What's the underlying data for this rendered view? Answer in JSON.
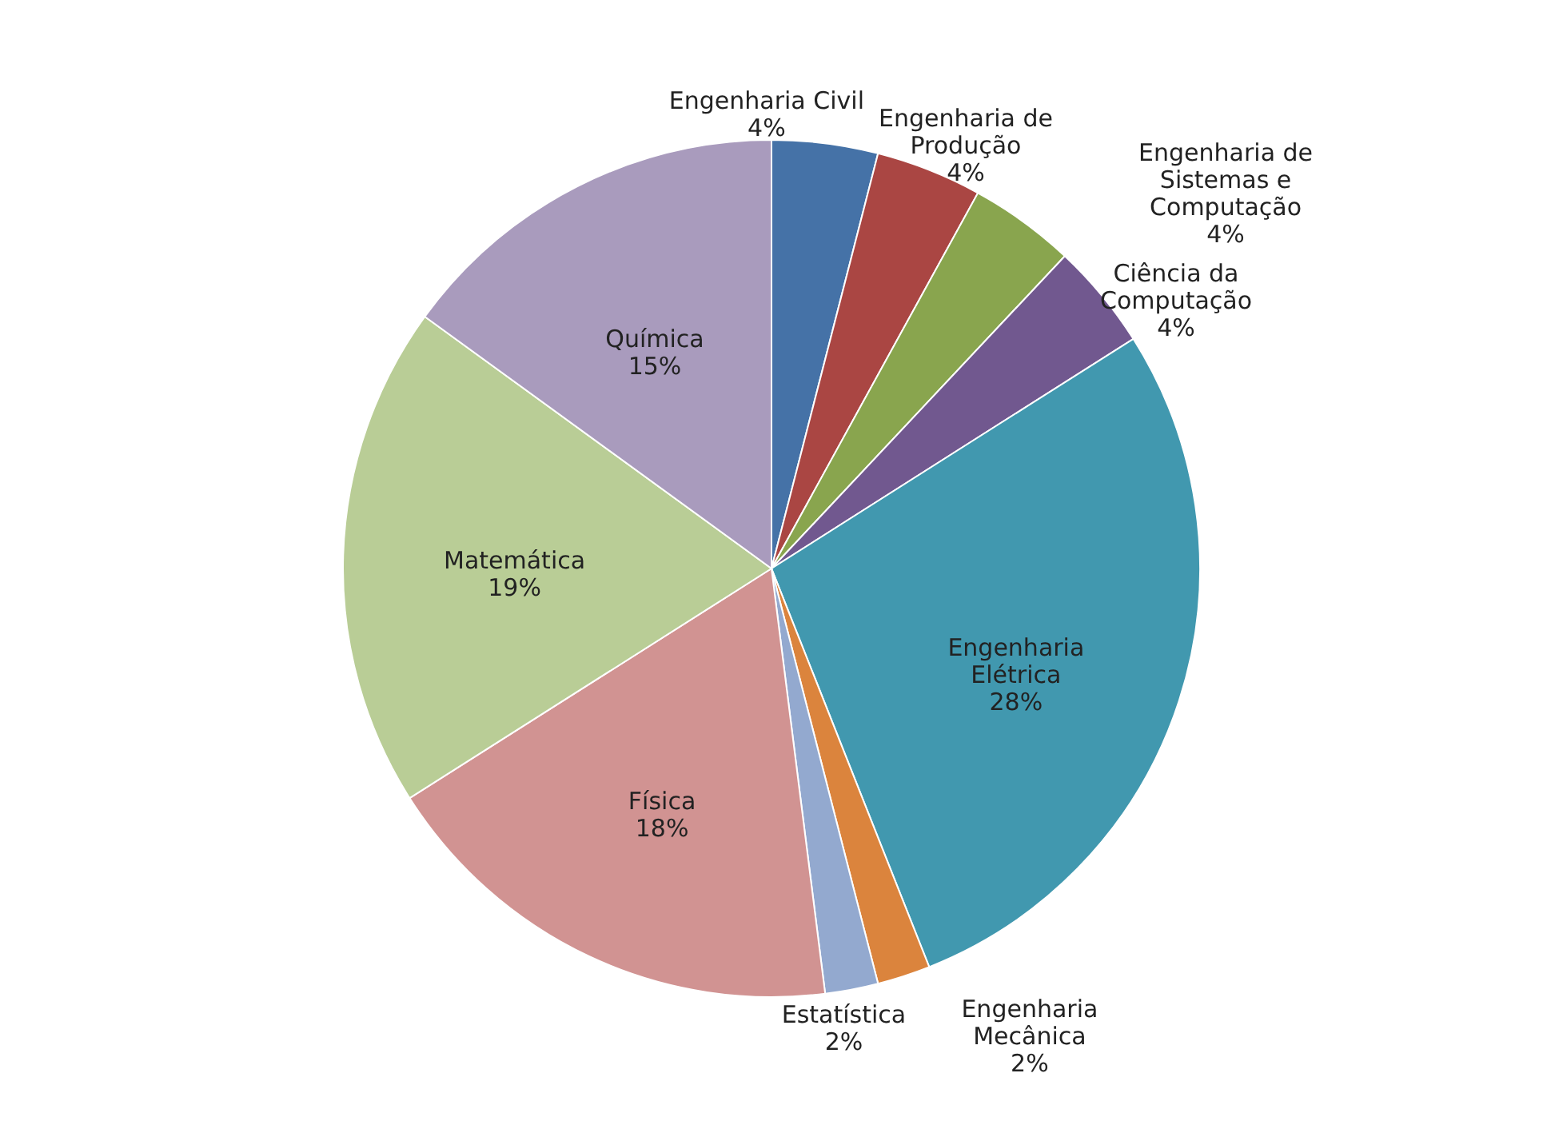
{
  "chart_data": {
    "type": "pie",
    "categories": [
      "Engenharia Civil",
      "Engenharia de Produção",
      "Engenharia de Sistemas e Computação",
      "Ciência da Computação",
      "Engenharia Elétrica",
      "Engenharia Mecânica",
      "Estatística",
      "Física",
      "Matemática",
      "Química"
    ],
    "values": [
      4,
      4,
      4,
      4,
      28,
      2,
      2,
      18,
      19,
      15
    ],
    "value_labels": [
      "4%",
      "4%",
      "4%",
      "4%",
      "28%",
      "2%",
      "2%",
      "18%",
      "19%",
      "15%"
    ],
    "colors": [
      "#4572a7",
      "#aa4643",
      "#89a54e",
      "#71588f",
      "#4198af",
      "#db843d",
      "#93a9cf",
      "#d19392",
      "#b9cd96",
      "#a99bbd"
    ],
    "legend": false
  }
}
